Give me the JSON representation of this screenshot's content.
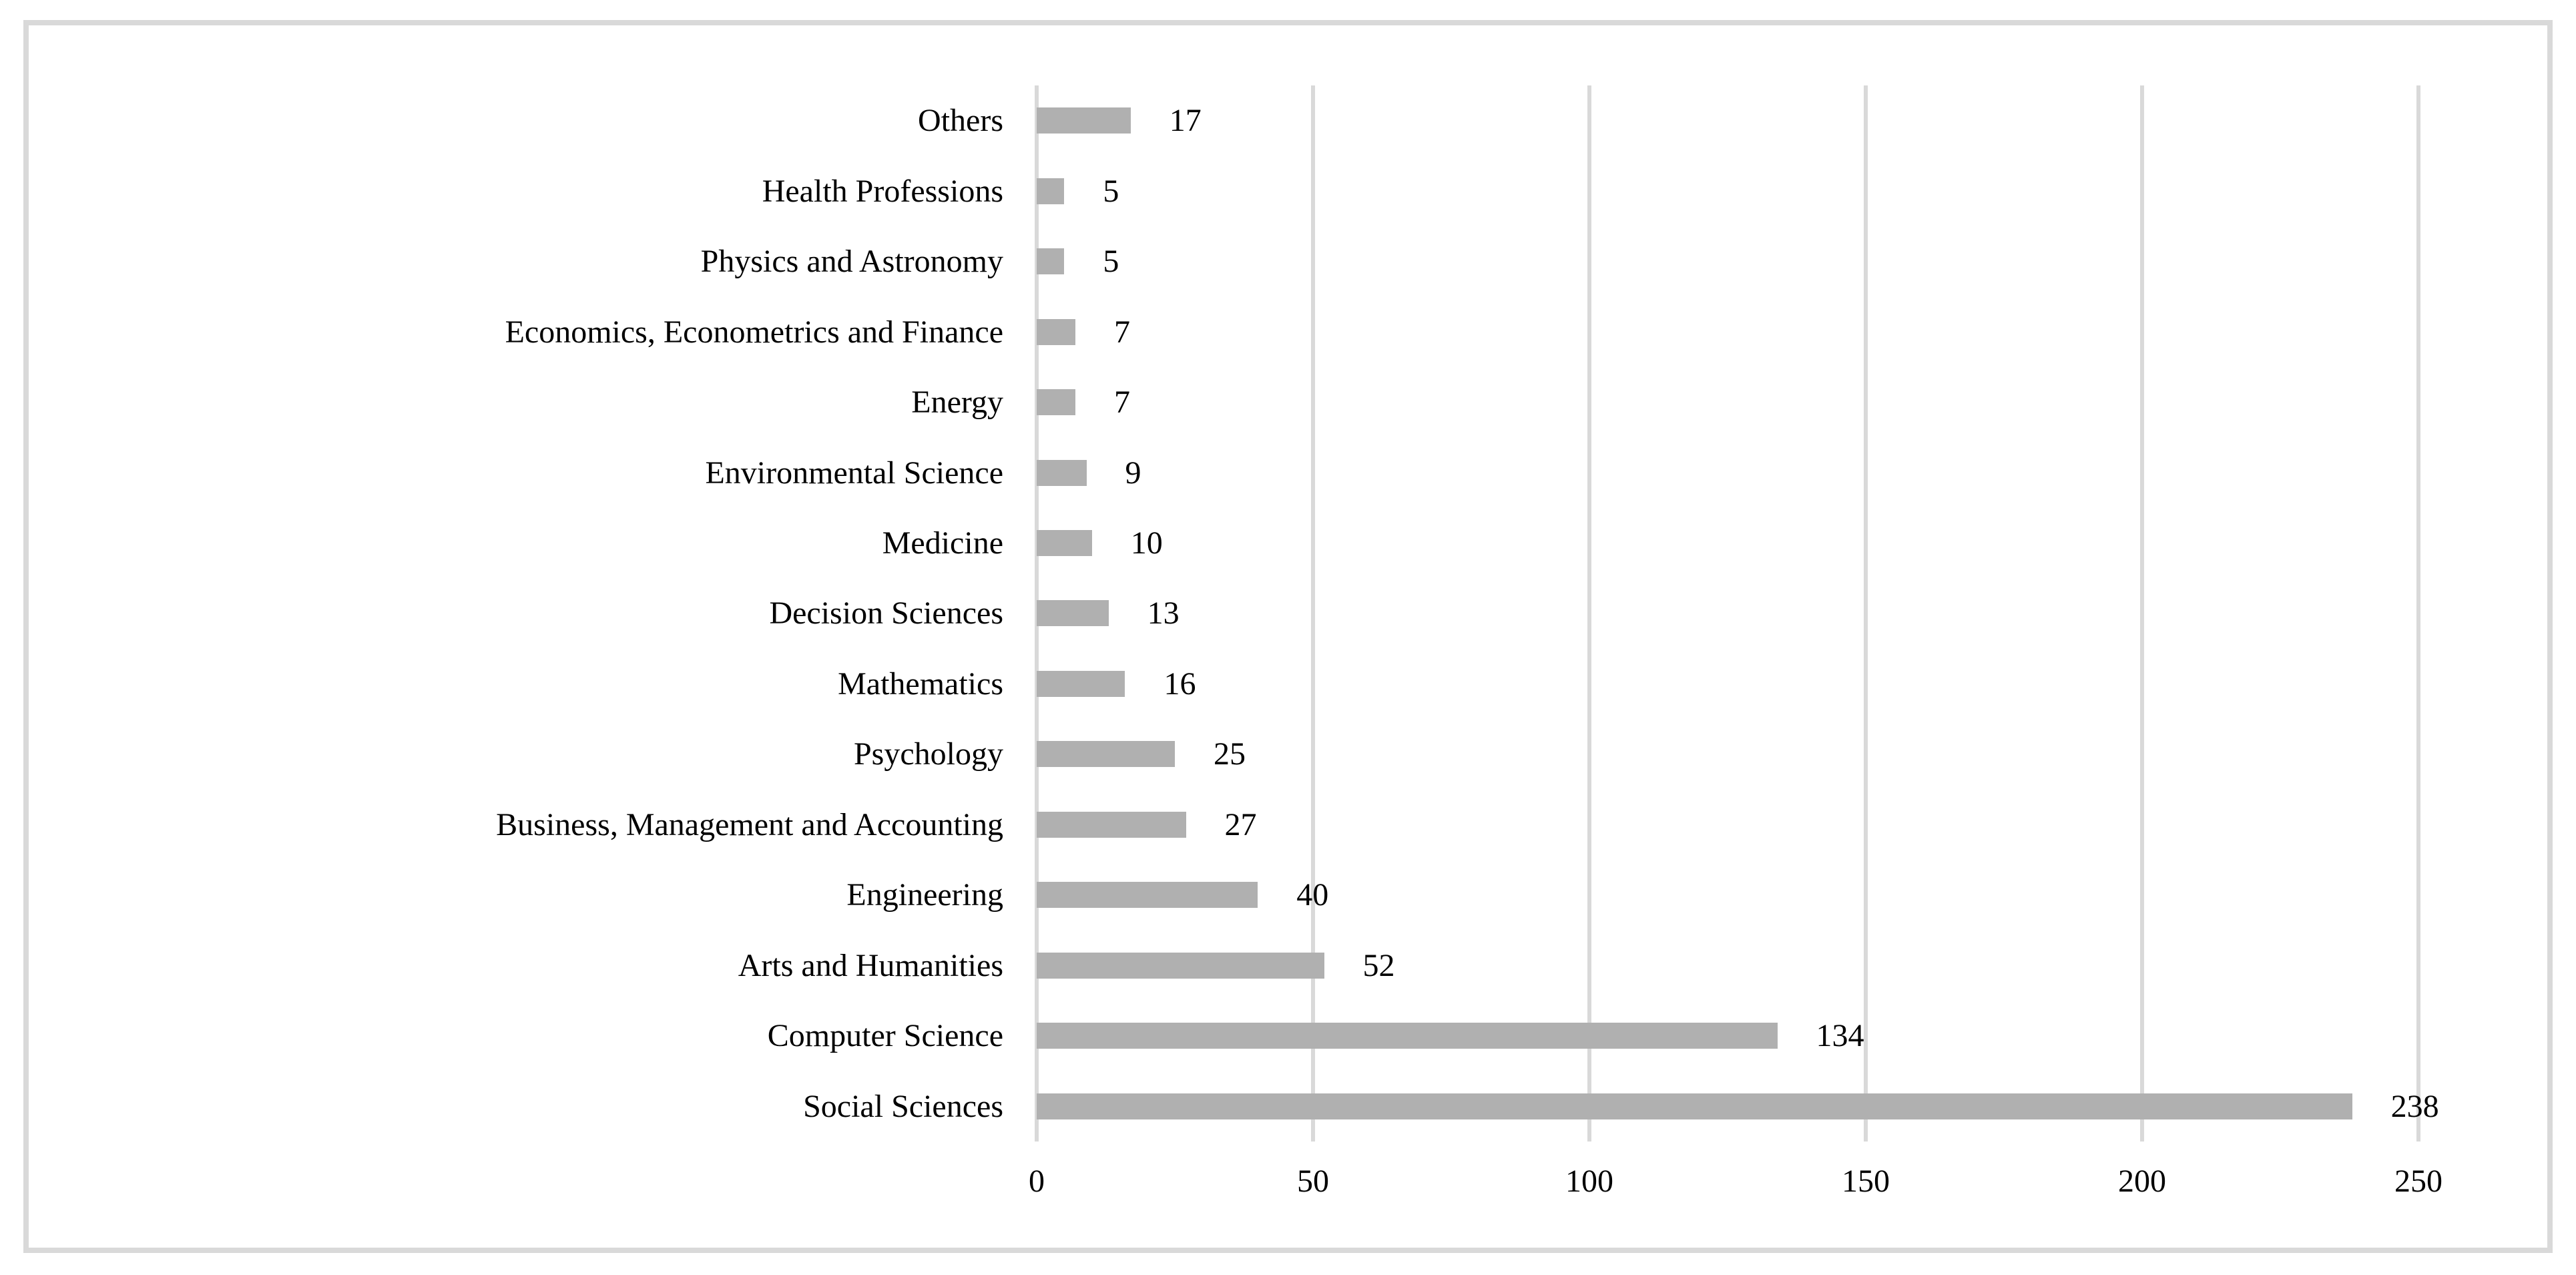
{
  "chart_data": {
    "type": "bar",
    "orientation": "horizontal",
    "title": "",
    "xlabel": "",
    "ylabel": "",
    "categories": [
      "Others",
      "Health Professions",
      "Physics and Astronomy",
      "Economics, Econometrics and Finance",
      "Energy",
      "Environmental Science",
      "Medicine",
      "Decision Sciences",
      "Mathematics",
      "Psychology",
      "Business, Management and Accounting",
      "Engineering",
      "Arts and Humanities",
      "Computer Science",
      "Social Sciences"
    ],
    "values": [
      17,
      5,
      5,
      7,
      7,
      9,
      10,
      13,
      16,
      25,
      27,
      40,
      52,
      134,
      238
    ],
    "value_labels": [
      "17",
      "5",
      "5",
      "7",
      "7",
      "9",
      "10",
      "13",
      "16",
      "25",
      "27",
      "40",
      "52",
      "134",
      "238"
    ],
    "xticks": [
      0,
      50,
      100,
      150,
      200,
      250
    ],
    "xtick_labels": [
      "0",
      "50",
      "100",
      "150",
      "200",
      "250"
    ],
    "xlim": [
      0,
      250
    ],
    "grid": true,
    "legend": false,
    "colors": {
      "bar": "#b0b0b0",
      "gridline": "#d9d9d9",
      "axis_line": "#d9d9d9",
      "frame_border": "#d9d9d9",
      "text": "#000000",
      "background": "#ffffff"
    }
  }
}
